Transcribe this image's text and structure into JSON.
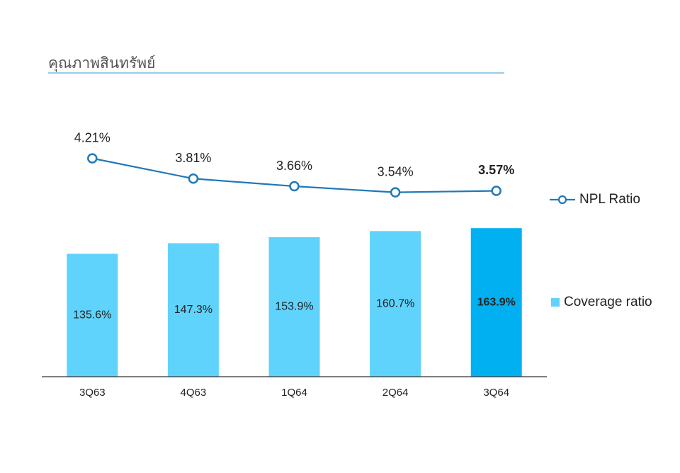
{
  "chart_data": {
    "type": "combo",
    "title": "คุณภาพสินทรัพย์",
    "categories": [
      "3Q63",
      "4Q63",
      "1Q64",
      "2Q64",
      "3Q64"
    ],
    "ylim": [
      0,
      200
    ],
    "y2lim": [
      2,
      5
    ],
    "series": [
      {
        "name": "Coverage ratio",
        "type": "bar",
        "color": "#5fd3fb",
        "colors": [
          "#5fd3fb",
          "#5fd3fb",
          "#5fd3fb",
          "#5fd3fb",
          "#00b0f0"
        ],
        "values": [
          135.6,
          147.3,
          153.9,
          160.7,
          163.9
        ],
        "value_labels": [
          "135.6%",
          "147.3%",
          "153.9%",
          "160.7%",
          "163.9%"
        ],
        "label_weights": [
          "normal",
          "normal",
          "normal",
          "normal",
          "bold"
        ]
      },
      {
        "name": "NPL Ratio",
        "type": "line",
        "axis": "y2",
        "color": "#1f78b9",
        "values": [
          4.21,
          3.81,
          3.66,
          3.54,
          3.57
        ],
        "value_labels": [
          "4.21%",
          "3.81%",
          "3.66%",
          "3.54%",
          "3.57%"
        ],
        "label_weights": [
          "normal",
          "normal",
          "normal",
          "normal",
          "bold"
        ]
      }
    ]
  }
}
